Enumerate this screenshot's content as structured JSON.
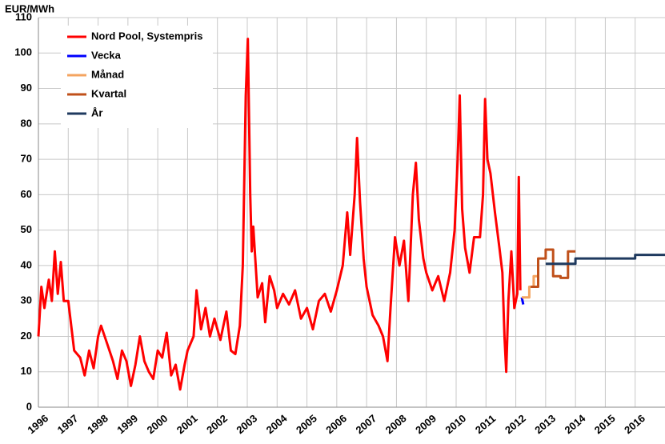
{
  "chart_data": {
    "type": "line",
    "ylabel": "EUR/MWh",
    "xlim": [
      1996,
      2017
    ],
    "xticks": [
      1996,
      1997,
      1998,
      1999,
      2000,
      2001,
      2002,
      2003,
      2004,
      2005,
      2006,
      2007,
      2008,
      2009,
      2010,
      2011,
      2012,
      2013,
      2014,
      2015,
      2016
    ],
    "ylim": [
      0,
      110
    ],
    "yticks": [
      0,
      10,
      20,
      30,
      40,
      50,
      60,
      70,
      80,
      90,
      100,
      110
    ],
    "grid": true,
    "legend": "upper left",
    "series": [
      {
        "name": "Nord Pool, Systempris",
        "color": "#ff0000",
        "x": [
          1996.0,
          1996.1,
          1996.2,
          1996.35,
          1996.45,
          1996.55,
          1996.65,
          1996.75,
          1996.85,
          1997.0,
          1997.2,
          1997.4,
          1997.55,
          1997.7,
          1997.85,
          1998.0,
          1998.1,
          1998.3,
          1998.5,
          1998.65,
          1998.8,
          1998.95,
          1999.1,
          1999.25,
          1999.4,
          1999.55,
          1999.7,
          1999.85,
          2000.0,
          2000.15,
          2000.3,
          2000.45,
          2000.6,
          2000.75,
          2000.9,
          2001.0,
          2001.2,
          2001.3,
          2001.45,
          2001.6,
          2001.75,
          2001.9,
          2002.1,
          2002.3,
          2002.45,
          2002.6,
          2002.75,
          2002.85,
          2002.95,
          2003.02,
          2003.1,
          2003.15,
          2003.2,
          2003.35,
          2003.5,
          2003.6,
          2003.75,
          2003.9,
          2004.0,
          2004.2,
          2004.4,
          2004.6,
          2004.8,
          2005.0,
          2005.2,
          2005.4,
          2005.6,
          2005.8,
          2006.0,
          2006.2,
          2006.35,
          2006.45,
          2006.6,
          2006.68,
          2006.78,
          2006.9,
          2007.0,
          2007.2,
          2007.4,
          2007.55,
          2007.7,
          2007.8,
          2007.95,
          2008.1,
          2008.25,
          2008.4,
          2008.55,
          2008.65,
          2008.75,
          2008.9,
          2009.0,
          2009.2,
          2009.4,
          2009.6,
          2009.8,
          2009.95,
          2010.05,
          2010.12,
          2010.2,
          2010.3,
          2010.45,
          2010.6,
          2010.8,
          2010.9,
          2010.97,
          2011.05,
          2011.15,
          2011.3,
          2011.45,
          2011.55,
          2011.62,
          2011.68,
          2011.75,
          2011.85,
          2011.95,
          2012.05,
          2012.1,
          2012.15
        ],
        "values": [
          20,
          34,
          28,
          36,
          30,
          44,
          32,
          41,
          30,
          30,
          16,
          14,
          9,
          16,
          11,
          20,
          23,
          18,
          13,
          8,
          16,
          13,
          6,
          12,
          20,
          13,
          10,
          8,
          16,
          14,
          21,
          9,
          12,
          5,
          12,
          16,
          20,
          33,
          22,
          28,
          20,
          25,
          19,
          27,
          16,
          15,
          23,
          40,
          88,
          104,
          60,
          44,
          51,
          31,
          35,
          24,
          37,
          33,
          28,
          32,
          29,
          33,
          25,
          28,
          22,
          30,
          32,
          27,
          33,
          40,
          55,
          43,
          60,
          76,
          58,
          42,
          34,
          26,
          23,
          20,
          13,
          28,
          48,
          40,
          47,
          30,
          60,
          69,
          53,
          42,
          38,
          33,
          37,
          30,
          38,
          50,
          70,
          88,
          56,
          45,
          38,
          48,
          48,
          60,
          87,
          70,
          66,
          55,
          45,
          38,
          20,
          10,
          30,
          44,
          28,
          32,
          65,
          33
        ]
      },
      {
        "name": "Vecka",
        "color": "#0000ff",
        "x": [
          2012.2,
          2012.25
        ],
        "values": [
          31,
          29
        ]
      },
      {
        "name": "Månad",
        "color": "#f4a460",
        "x": [
          2012.2,
          2012.45,
          2012.45,
          2012.6,
          2012.6,
          2012.72
        ],
        "values": [
          31,
          31,
          34,
          34,
          37,
          37
        ]
      },
      {
        "name": "Kvartal",
        "color": "#c0501a",
        "x": [
          2012.5,
          2012.75,
          2012.75,
          2013.0,
          2013.0,
          2013.25,
          2013.25,
          2013.5,
          2013.5,
          2013.75,
          2013.75,
          2014.0
        ],
        "values": [
          34,
          34,
          42,
          42,
          44.5,
          44.5,
          37,
          37,
          36.5,
          36.5,
          44,
          44
        ]
      },
      {
        "name": "År",
        "color": "#1f3a5f",
        "x": [
          2013,
          2014,
          2014,
          2015,
          2015,
          2016,
          2016,
          2017
        ],
        "values": [
          40.5,
          40.5,
          42,
          42,
          42,
          42,
          43,
          43
        ]
      }
    ]
  }
}
